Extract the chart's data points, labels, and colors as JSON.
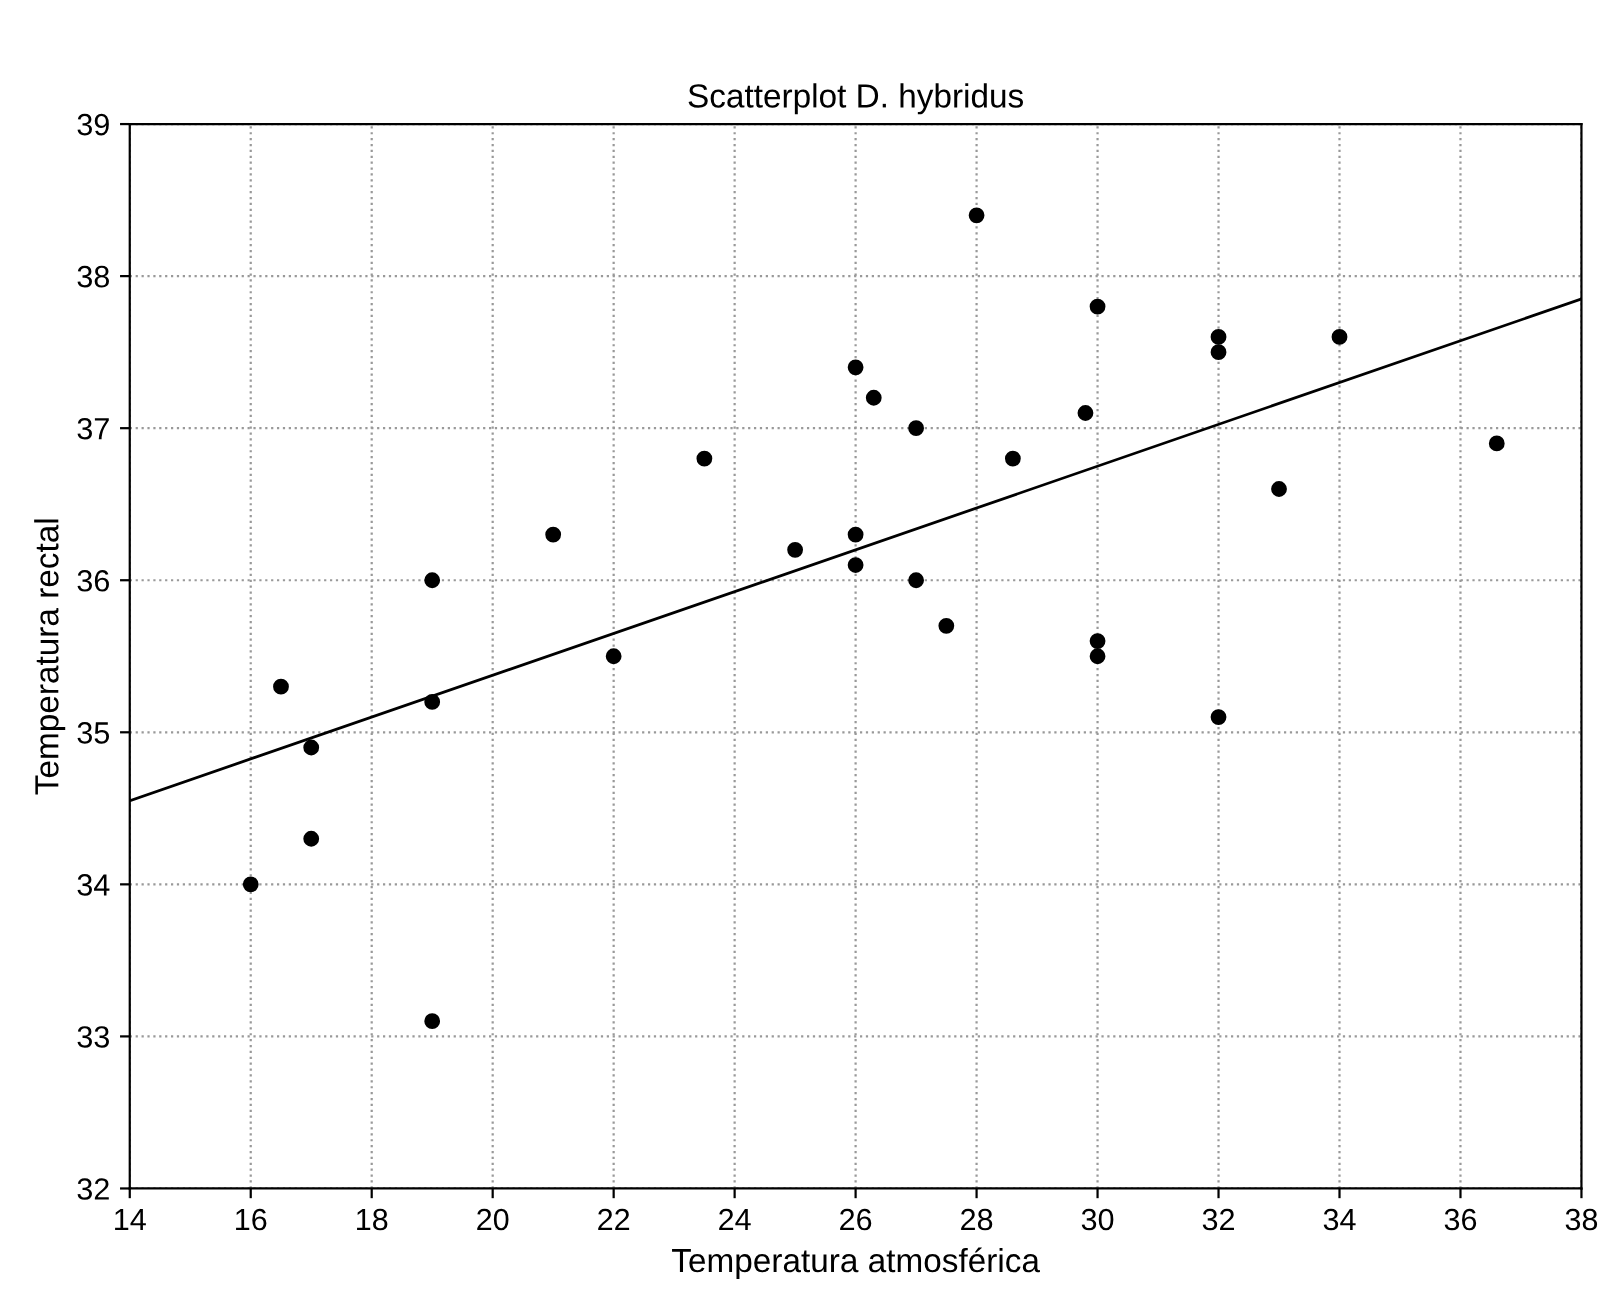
{
  "chart_data": {
    "type": "scatter",
    "title": "Scatterplot D. hybridus",
    "xlabel": "Temperatura atmosférica",
    "ylabel": "Temperatura rectal",
    "series": [
      {
        "type": "scatter",
        "color": "#000000",
        "marker": "circle",
        "x": [
          16,
          16.5,
          17,
          17,
          19,
          19,
          19,
          21,
          22,
          23.5,
          25,
          26,
          26.3,
          26,
          26,
          27,
          27,
          27.5,
          28,
          28.6,
          29.8,
          30,
          30,
          30,
          32,
          32,
          32,
          33,
          34,
          36.6
        ],
        "values": [
          34.0,
          35.3,
          34.9,
          34.3,
          36.0,
          35.2,
          33.1,
          36.3,
          35.5,
          36.8,
          36.2,
          37.4,
          37.2,
          36.3,
          36.1,
          37.0,
          36.0,
          35.7,
          38.4,
          36.8,
          37.1,
          37.8,
          35.6,
          35.5,
          37.6,
          37.5,
          35.1,
          36.6,
          37.6,
          36.9
        ]
      },
      {
        "type": "line",
        "color": "#000000",
        "line_style": "solid",
        "x": [
          14,
          38
        ],
        "values": [
          34.55,
          37.85
        ]
      }
    ],
    "xlim": [
      14,
      38
    ],
    "ylim": [
      32,
      39
    ],
    "xticks": [
      14,
      16,
      18,
      20,
      22,
      24,
      26,
      28,
      30,
      32,
      34,
      36,
      38
    ],
    "yticks": [
      32,
      33,
      34,
      35,
      36,
      37,
      38,
      39
    ],
    "grid": true
  }
}
